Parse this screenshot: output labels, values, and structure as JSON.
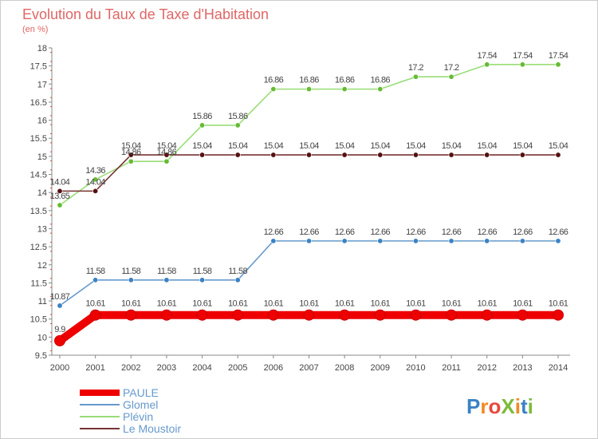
{
  "chart_data": {
    "type": "line",
    "title": "Evolution du Taux de Taxe d'Habitation",
    "subtitle": "(en %)",
    "x": [
      2000,
      2001,
      2002,
      2003,
      2004,
      2005,
      2006,
      2007,
      2008,
      2009,
      2010,
      2011,
      2012,
      2013,
      2014
    ],
    "ylim": [
      9.5,
      18
    ],
    "yticks": [
      9.5,
      10,
      10.5,
      11,
      11.5,
      12,
      12.5,
      13,
      13.5,
      14,
      14.5,
      15,
      15.5,
      16,
      16.5,
      17,
      17.5,
      18
    ],
    "grid": false,
    "legend_position": "bottom-left",
    "series": [
      {
        "name": "PAULE",
        "color": "#ee0000",
        "marker": "#ee0000",
        "thick": true,
        "values": [
          9.9,
          10.61,
          10.61,
          10.61,
          10.61,
          10.61,
          10.61,
          10.61,
          10.61,
          10.61,
          10.61,
          10.61,
          10.61,
          10.61,
          10.61
        ],
        "labels": [
          "9.9",
          "10.61",
          "10.61",
          "10.61",
          "10.61",
          "10.61",
          "10.61",
          "10.61",
          "10.61",
          "10.61",
          "10.61",
          "10.61",
          "10.61",
          "10.61",
          "10.61"
        ]
      },
      {
        "name": "Glomel",
        "color": "#6699cc",
        "marker": "#3b82c4",
        "thick": false,
        "values": [
          10.87,
          11.58,
          11.58,
          11.58,
          11.58,
          11.58,
          12.66,
          12.66,
          12.66,
          12.66,
          12.66,
          12.66,
          12.66,
          12.66,
          12.66
        ],
        "labels": [
          "10.87",
          "11.58",
          "11.58",
          "11.58",
          "11.58",
          "11.58",
          "12.66",
          "12.66",
          "12.66",
          "12.66",
          "12.66",
          "12.66",
          "12.66",
          "12.66",
          "12.66"
        ]
      },
      {
        "name": "Plévin",
        "color": "#99dd77",
        "marker": "#66bb33",
        "thick": false,
        "values": [
          13.65,
          14.36,
          14.86,
          14.86,
          15.86,
          15.86,
          16.86,
          16.86,
          16.86,
          16.86,
          17.2,
          17.2,
          17.54,
          17.54,
          17.54
        ],
        "labels": [
          "13.65",
          "14.36",
          "14.86",
          "14.86",
          "15.86",
          "15.86",
          "16.86",
          "16.86",
          "16.86",
          "16.86",
          "17.2",
          "17.2",
          "17.54",
          "17.54",
          "17.54"
        ]
      },
      {
        "name": "Le Moustoir",
        "color": "#773333",
        "marker": "#551111",
        "thick": false,
        "values": [
          14.04,
          14.04,
          15.04,
          15.04,
          15.04,
          15.04,
          15.04,
          15.04,
          15.04,
          15.04,
          15.04,
          15.04,
          15.04,
          15.04,
          15.04
        ],
        "labels": [
          "14.04",
          "14.04",
          "15.04",
          "15.04",
          "15.04",
          "15.04",
          "15.04",
          "15.04",
          "15.04",
          "15.04",
          "15.04",
          "15.04",
          "15.04",
          "15.04",
          "15.04"
        ]
      }
    ]
  },
  "branding": {
    "logo_text": "ProXiti"
  }
}
